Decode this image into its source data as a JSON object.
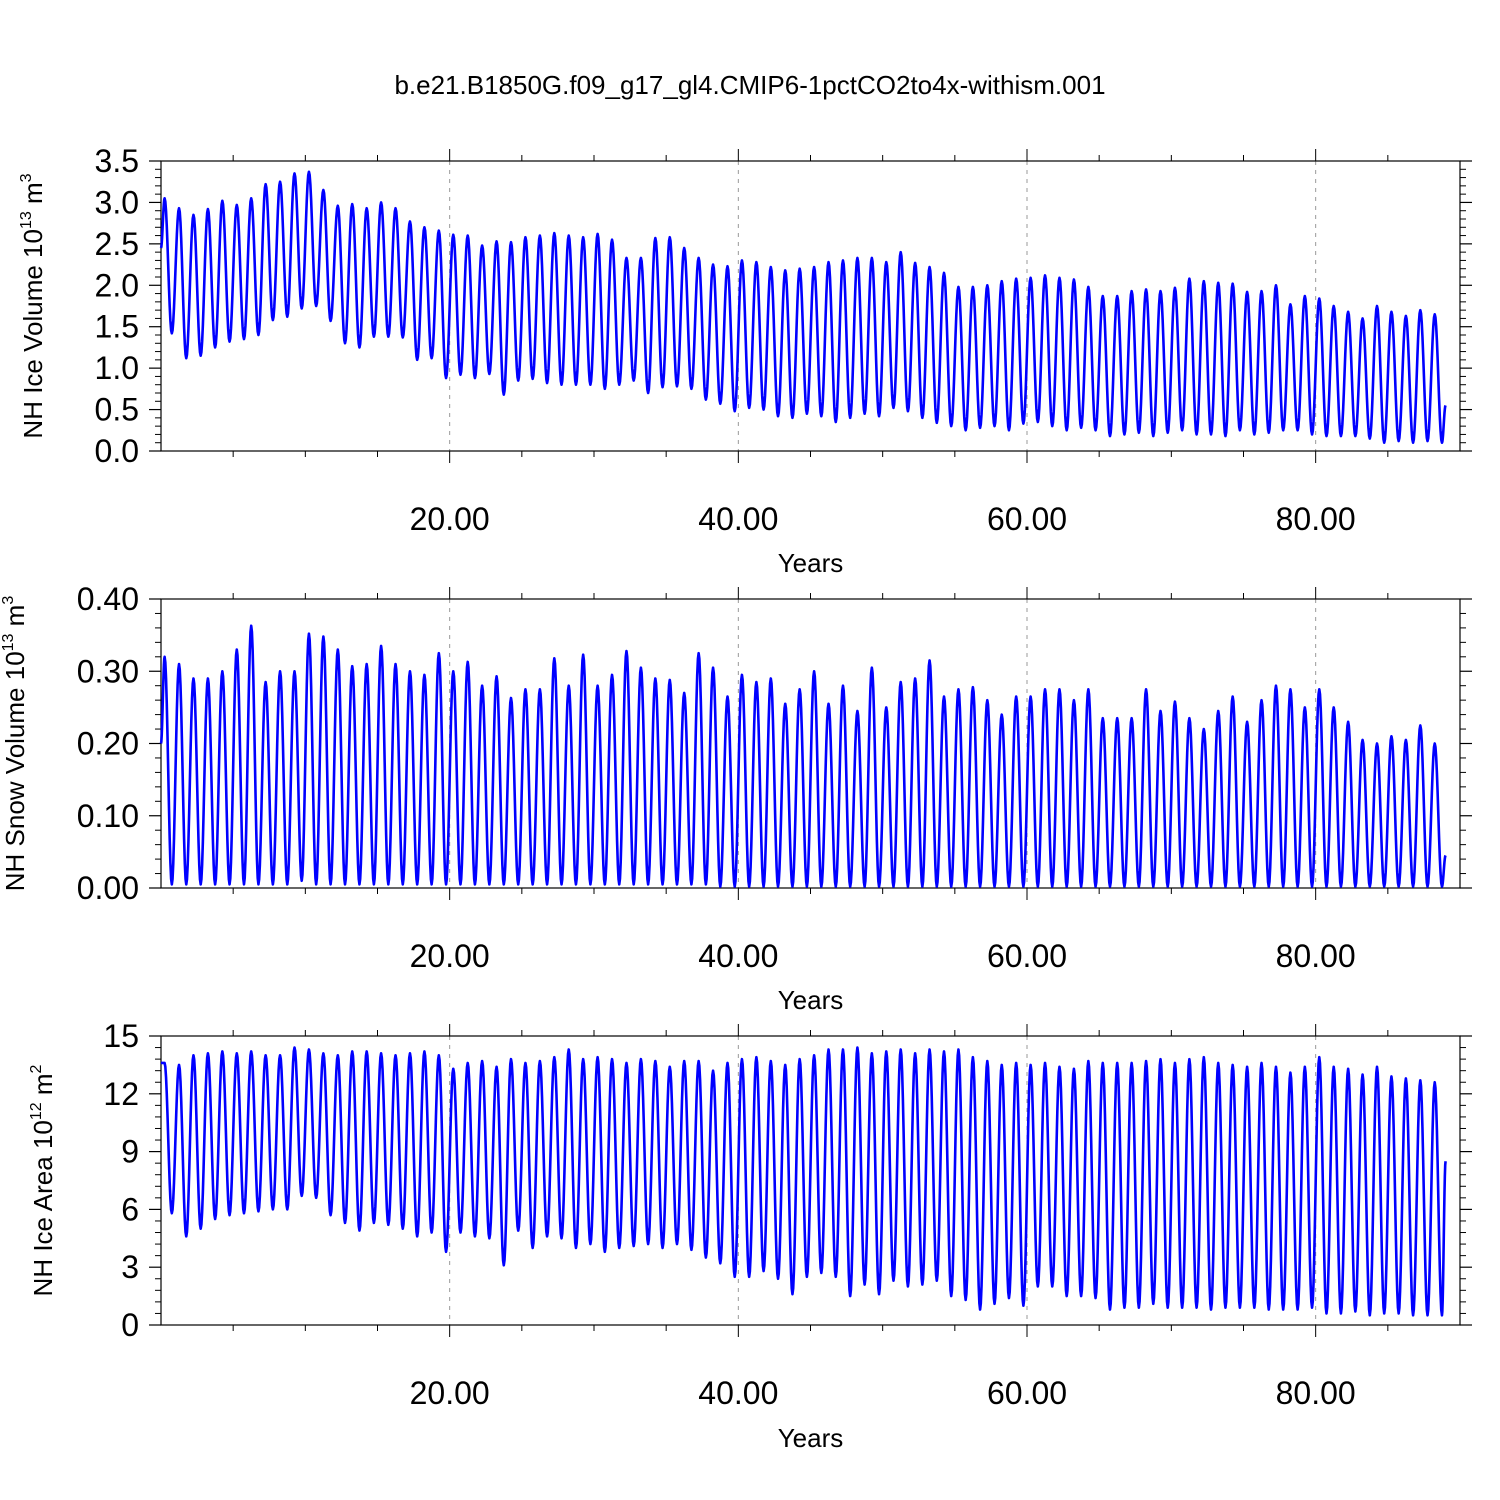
{
  "title": "b.e21.B1850G.f09_g17_gl4.CMIP6-1pctCO2to4x-withism.001",
  "colors": {
    "line": "#0000ff",
    "grid": "#999999",
    "axis": "#000000"
  },
  "chart_data": [
    {
      "type": "line",
      "ylabel": {
        "text": "NH Ice Volume 10",
        "exp": "13",
        "unit": " m",
        "unit_exp": "3"
      },
      "xlabel": "Years",
      "xlim": [
        0,
        90
      ],
      "ylim": [
        0,
        3.5
      ],
      "x_ticks": [
        20,
        40,
        60,
        80
      ],
      "x_tick_labels": [
        "20.00",
        "40.00",
        "60.00",
        "80.00"
      ],
      "y_ticks": [
        0,
        0.5,
        1.0,
        1.5,
        2.0,
        2.5,
        3.0,
        3.5
      ],
      "y_tick_labels": [
        "0.0",
        "0.5",
        "1.0",
        "1.5",
        "2.0",
        "2.5",
        "3.0",
        "3.5"
      ],
      "grid": "vertical dashed at major x ticks",
      "series": [
        {
          "start": 2.45,
          "end": 0.55,
          "max": [
            3.05,
            2.93,
            2.85,
            2.92,
            3.02,
            2.97,
            3.05,
            3.22,
            3.25,
            3.35,
            3.37,
            3.15,
            2.96,
            2.98,
            2.93,
            3.0,
            2.93,
            2.77,
            2.7,
            2.66,
            2.61,
            2.6,
            2.48,
            2.53,
            2.52,
            2.58,
            2.6,
            2.63,
            2.6,
            2.58,
            2.62,
            2.55,
            2.33,
            2.33,
            2.57,
            2.58,
            2.45,
            2.33,
            2.25,
            2.23,
            2.3,
            2.28,
            2.22,
            2.18,
            2.2,
            2.22,
            2.28,
            2.3,
            2.33,
            2.33,
            2.28,
            2.4,
            2.27,
            2.22,
            2.15,
            1.98,
            1.98,
            2.0,
            2.05,
            2.08,
            2.09,
            2.12,
            2.09,
            2.07,
            1.98,
            1.87,
            1.87,
            1.93,
            1.95,
            1.93,
            1.97,
            2.08,
            2.05,
            2.03,
            2.02,
            1.92,
            1.93,
            2.0,
            1.77,
            1.87,
            1.84,
            1.75,
            1.68,
            1.6,
            1.75,
            1.68,
            1.63,
            1.7,
            1.65
          ],
          "min": [
            1.42,
            1.12,
            1.15,
            1.25,
            1.32,
            1.35,
            1.4,
            1.58,
            1.62,
            1.72,
            1.75,
            1.57,
            1.3,
            1.25,
            1.38,
            1.38,
            1.37,
            1.1,
            1.12,
            0.88,
            0.92,
            0.88,
            0.93,
            0.68,
            0.85,
            0.87,
            0.82,
            0.8,
            0.8,
            0.8,
            0.75,
            0.8,
            0.85,
            0.7,
            0.77,
            0.78,
            0.75,
            0.62,
            0.57,
            0.48,
            0.52,
            0.5,
            0.42,
            0.4,
            0.45,
            0.42,
            0.35,
            0.4,
            0.45,
            0.42,
            0.52,
            0.48,
            0.4,
            0.34,
            0.3,
            0.25,
            0.28,
            0.3,
            0.25,
            0.33,
            0.35,
            0.3,
            0.25,
            0.28,
            0.25,
            0.18,
            0.2,
            0.22,
            0.18,
            0.22,
            0.25,
            0.2,
            0.2,
            0.18,
            0.25,
            0.2,
            0.22,
            0.25,
            0.25,
            0.2,
            0.18,
            0.18,
            0.18,
            0.15,
            0.1,
            0.12,
            0.1,
            0.12,
            0.1
          ]
        }
      ]
    },
    {
      "type": "line",
      "ylabel": {
        "text": "NH Snow Volume 10",
        "exp": "13",
        "unit": " m",
        "unit_exp": "3"
      },
      "xlabel": "Years",
      "xlim": [
        0,
        90
      ],
      "ylim": [
        0,
        0.4
      ],
      "x_ticks": [
        20,
        40,
        60,
        80
      ],
      "x_tick_labels": [
        "20.00",
        "40.00",
        "60.00",
        "80.00"
      ],
      "y_ticks": [
        0,
        0.1,
        0.2,
        0.3,
        0.4
      ],
      "y_tick_labels": [
        "0.00",
        "0.10",
        "0.20",
        "0.30",
        "0.40"
      ],
      "grid": "vertical dashed at major x ticks",
      "series": [
        {
          "start": 0.2,
          "end": 0.045,
          "max": [
            0.32,
            0.31,
            0.29,
            0.29,
            0.3,
            0.33,
            0.363,
            0.285,
            0.3,
            0.3,
            0.352,
            0.348,
            0.33,
            0.307,
            0.31,
            0.335,
            0.31,
            0.3,
            0.295,
            0.325,
            0.3,
            0.313,
            0.28,
            0.293,
            0.263,
            0.275,
            0.275,
            0.318,
            0.28,
            0.323,
            0.28,
            0.295,
            0.328,
            0.305,
            0.29,
            0.288,
            0.27,
            0.325,
            0.305,
            0.265,
            0.295,
            0.285,
            0.29,
            0.255,
            0.275,
            0.3,
            0.255,
            0.28,
            0.245,
            0.305,
            0.25,
            0.285,
            0.29,
            0.315,
            0.265,
            0.275,
            0.278,
            0.26,
            0.24,
            0.265,
            0.265,
            0.275,
            0.275,
            0.26,
            0.275,
            0.235,
            0.235,
            0.235,
            0.275,
            0.245,
            0.258,
            0.235,
            0.22,
            0.245,
            0.265,
            0.23,
            0.26,
            0.28,
            0.275,
            0.25,
            0.275,
            0.25,
            0.23,
            0.205,
            0.2,
            0.21,
            0.205,
            0.225,
            0.2
          ],
          "min": [
            0.005,
            0.005,
            0.005,
            0.005,
            0.005,
            0.005,
            0.005,
            0.005,
            0.005,
            0.01,
            0.005,
            0.005,
            0.005,
            0.005,
            0.005,
            0.005,
            0.005,
            0.005,
            0.005,
            0.005,
            0.005,
            0.005,
            0.005,
            0.005,
            0.005,
            0.005,
            0.005,
            0.005,
            0.005,
            0.005,
            0.005,
            0.005,
            0.005,
            0.005,
            0.005,
            0.005,
            0.005,
            0.005,
            0.002,
            0.002,
            0.002,
            0.002,
            0.002,
            0.002,
            0.002,
            0.002,
            0.002,
            0.002,
            0.002,
            0.002,
            0.002,
            0.002,
            0.002,
            0.002,
            0.002,
            0.002,
            0.002,
            0.002,
            0.002,
            0.002,
            0.002,
            0.002,
            0.002,
            0.002,
            0.002,
            0.002,
            0.002,
            0.002,
            0.002,
            0.002,
            0.002,
            0.002,
            0.002,
            0.002,
            0.002,
            0.002,
            0.002,
            0.002,
            0.002,
            0.002,
            0.002,
            0.002,
            0.002,
            0.002,
            0.002,
            0.002,
            0.002,
            0.002,
            0.002
          ]
        }
      ]
    },
    {
      "type": "line",
      "ylabel": {
        "text": "NH Ice Area 10",
        "exp": "12",
        "unit": " m",
        "unit_exp": "2"
      },
      "xlabel": "Years",
      "xlim": [
        0,
        90
      ],
      "ylim": [
        0,
        15
      ],
      "x_ticks": [
        20,
        40,
        60,
        80
      ],
      "x_tick_labels": [
        "20.00",
        "40.00",
        "60.00",
        "80.00"
      ],
      "y_ticks": [
        0,
        3,
        6,
        9,
        12,
        15
      ],
      "y_tick_labels": [
        "0",
        "3",
        "6",
        "9",
        "12",
        "15"
      ],
      "grid": "vertical dashed at major x ticks",
      "series": [
        {
          "start": 13.6,
          "end": 8.5,
          "max": [
            13.6,
            13.5,
            14.0,
            14.1,
            14.2,
            14.1,
            14.2,
            14.0,
            14.0,
            14.4,
            14.3,
            14.1,
            14.0,
            14.2,
            14.2,
            14.1,
            14.0,
            14.1,
            14.2,
            14.0,
            13.3,
            13.6,
            13.7,
            13.4,
            13.8,
            13.6,
            13.7,
            13.9,
            14.3,
            13.8,
            13.9,
            13.8,
            13.6,
            13.8,
            13.7,
            13.4,
            13.7,
            13.7,
            13.2,
            13.6,
            13.8,
            13.9,
            13.7,
            13.5,
            13.8,
            14.0,
            14.3,
            14.3,
            14.4,
            14.1,
            14.2,
            14.3,
            14.1,
            14.3,
            14.2,
            14.3,
            13.9,
            13.7,
            13.5,
            13.6,
            13.5,
            13.6,
            13.4,
            13.3,
            13.7,
            13.6,
            13.6,
            13.6,
            13.7,
            13.8,
            13.6,
            13.8,
            13.9,
            13.6,
            13.5,
            13.4,
            13.6,
            13.4,
            13.1,
            13.4,
            13.9,
            13.4,
            13.3,
            13.0,
            13.4,
            12.9,
            12.8,
            12.7,
            12.6
          ],
          "min": [
            5.8,
            4.6,
            5.0,
            5.5,
            5.7,
            5.8,
            5.9,
            6.0,
            6.0,
            6.7,
            6.6,
            5.7,
            5.3,
            4.9,
            5.3,
            5.2,
            5.0,
            4.6,
            4.8,
            3.8,
            4.8,
            4.6,
            4.5,
            3.1,
            4.9,
            4.0,
            4.6,
            4.5,
            4.0,
            4.2,
            3.8,
            4.0,
            4.1,
            4.2,
            4.0,
            4.2,
            3.9,
            3.5,
            3.2,
            2.5,
            2.5,
            2.8,
            2.4,
            1.6,
            2.5,
            2.7,
            2.5,
            1.5,
            2.1,
            1.6,
            2.3,
            2.0,
            2.1,
            2.3,
            1.5,
            1.3,
            0.8,
            1.1,
            1.4,
            1.0,
            2.0,
            2.0,
            1.5,
            1.5,
            1.4,
            0.8,
            0.9,
            0.9,
            1.1,
            0.9,
            0.9,
            0.9,
            0.8,
            0.9,
            0.9,
            0.9,
            0.8,
            0.8,
            0.8,
            0.9,
            0.6,
            0.6,
            0.7,
            0.5,
            0.6,
            0.6,
            0.5,
            0.5,
            0.5
          ]
        }
      ]
    }
  ]
}
